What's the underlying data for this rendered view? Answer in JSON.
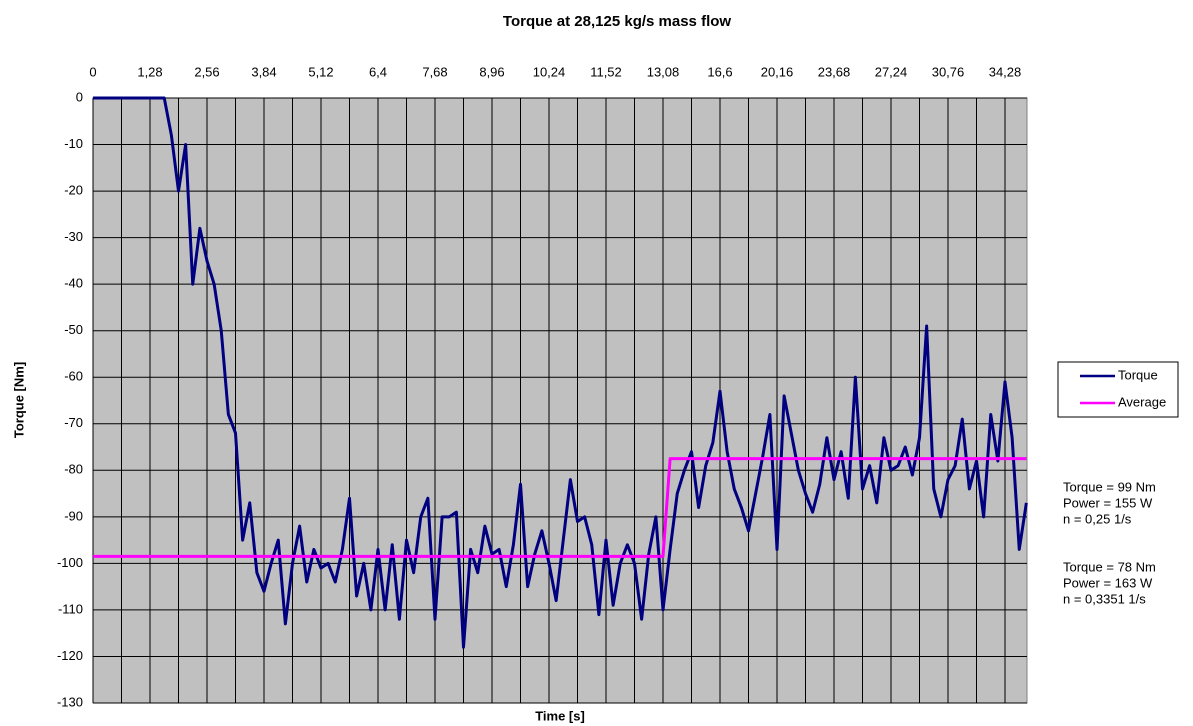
{
  "chart_data": {
    "type": "line",
    "title": "Torque at 28,125 kg/s mass flow",
    "x_label": "Time [s]",
    "y_label": "Torque [Nm]",
    "categories": [
      "0",
      null,
      null,
      null,
      null,
      null,
      null,
      null,
      "1,28",
      null,
      null,
      null,
      null,
      null,
      null,
      null,
      "2,56",
      null,
      null,
      null,
      null,
      null,
      null,
      null,
      "3,84",
      null,
      null,
      null,
      null,
      null,
      null,
      null,
      "5,12",
      null,
      null,
      null,
      null,
      null,
      null,
      null,
      "6,4",
      null,
      null,
      null,
      null,
      null,
      null,
      null,
      "7,68",
      null,
      null,
      null,
      null,
      null,
      null,
      null,
      "8,96",
      null,
      null,
      null,
      null,
      null,
      null,
      null,
      "10,24",
      null,
      null,
      null,
      null,
      null,
      null,
      null,
      "11,52",
      null,
      null,
      null,
      null,
      null,
      null,
      null,
      "13,08",
      null,
      null,
      null,
      null,
      null,
      null,
      null,
      "16,6",
      null,
      null,
      null,
      null,
      null,
      null,
      null,
      "20,16",
      null,
      null,
      null,
      null,
      null,
      null,
      null,
      "23,68",
      null,
      null,
      null,
      null,
      null,
      null,
      null,
      "27,24",
      null,
      null,
      null,
      null,
      null,
      null,
      null,
      "30,76",
      null,
      null,
      null,
      null,
      null,
      null,
      null,
      "34,28",
      null,
      null,
      null
    ],
    "series": [
      {
        "name": "Torque",
        "color": "#000080",
        "values": [
          0,
          0,
          0,
          0,
          0,
          0,
          0,
          0,
          0,
          0,
          0,
          -8,
          -20,
          -10,
          -40,
          -28,
          -35,
          -40,
          -50,
          -68,
          -72,
          -95,
          -87,
          -102,
          -106,
          -100,
          -95,
          -113,
          -100,
          -92,
          -104,
          -97,
          -101,
          -100,
          -104,
          -97,
          -86,
          -107,
          -100,
          -110,
          -97,
          -110,
          -96,
          -112,
          -95,
          -102,
          -90,
          -86,
          -112,
          -90,
          -90,
          -89,
          -118,
          -97,
          -102,
          -92,
          -98,
          -97,
          -105,
          -96,
          -83,
          -105,
          -98,
          -93,
          -100,
          -108,
          -95,
          -82,
          -91,
          -90,
          -96,
          -111,
          -95,
          -109,
          -100,
          -96,
          -100,
          -112,
          -98,
          -90,
          -110,
          -97,
          -85,
          -80,
          -76,
          -88,
          -79,
          -74,
          -63,
          -76,
          -84,
          -88,
          -93,
          -85,
          -77,
          -68,
          -97,
          -64,
          -72,
          -80,
          -85,
          -89,
          -83,
          -73,
          -82,
          -76,
          -86,
          -60,
          -84,
          -79,
          -87,
          -73,
          -80,
          -79,
          -75,
          -81,
          -73,
          -49,
          -84,
          -90,
          -82,
          -79,
          -69,
          -84,
          -78,
          -90,
          -68,
          -78,
          -61,
          -73,
          -97,
          -87
        ]
      },
      {
        "name": "Average",
        "color": "#ff00ff",
        "values": [
          -98.5,
          -98.5,
          -98.5,
          -98.5,
          -98.5,
          -98.5,
          -98.5,
          -98.5,
          -98.5,
          -98.5,
          -98.5,
          -98.5,
          -98.5,
          -98.5,
          -98.5,
          -98.5,
          -98.5,
          -98.5,
          -98.5,
          -98.5,
          -98.5,
          -98.5,
          -98.5,
          -98.5,
          -98.5,
          -98.5,
          -98.5,
          -98.5,
          -98.5,
          -98.5,
          -98.5,
          -98.5,
          -98.5,
          -98.5,
          -98.5,
          -98.5,
          -98.5,
          -98.5,
          -98.5,
          -98.5,
          -98.5,
          -98.5,
          -98.5,
          -98.5,
          -98.5,
          -98.5,
          -98.5,
          -98.5,
          -98.5,
          -98.5,
          -98.5,
          -98.5,
          -98.5,
          -98.5,
          -98.5,
          -98.5,
          -98.5,
          -98.5,
          -98.5,
          -98.5,
          -98.5,
          -98.5,
          -98.5,
          -98.5,
          -98.5,
          -98.5,
          -98.5,
          -98.5,
          -98.5,
          -98.5,
          -98.5,
          -98.5,
          -98.5,
          -98.5,
          -98.5,
          -98.5,
          -98.5,
          -98.5,
          -98.5,
          -98.5,
          -98.5,
          -77.5,
          -77.5,
          -77.5,
          -77.5,
          -77.5,
          -77.5,
          -77.5,
          -77.5,
          -77.5,
          -77.5,
          -77.5,
          -77.5,
          -77.5,
          -77.5,
          -77.5,
          -77.5,
          -77.5,
          -77.5,
          -77.5,
          -77.5,
          -77.5,
          -77.5,
          -77.5,
          -77.5,
          -77.5,
          -77.5,
          -77.5,
          -77.5,
          -77.5,
          -77.5,
          -77.5,
          -77.5,
          -77.5,
          -77.5,
          -77.5,
          -77.5,
          -77.5,
          -77.5,
          -77.5,
          -77.5,
          -77.5,
          -77.5,
          -77.5,
          -77.5,
          -77.5,
          -77.5,
          -77.5,
          -77.5,
          -77.5,
          -77.5,
          -77.5
        ]
      }
    ],
    "ylim": [
      -130,
      0
    ],
    "yticks": [
      0,
      -10,
      -20,
      -30,
      -40,
      -50,
      -60,
      -70,
      -80,
      -90,
      -100,
      -110,
      -120,
      -130
    ],
    "grid": true,
    "legend": "right",
    "annotations": [
      "Torque = 99 Nm",
      "Power = 155 W",
      "n = 0,25 1/s",
      "Torque = 78 Nm",
      "Power = 163 W",
      "n = 0,3351 1/s"
    ]
  }
}
